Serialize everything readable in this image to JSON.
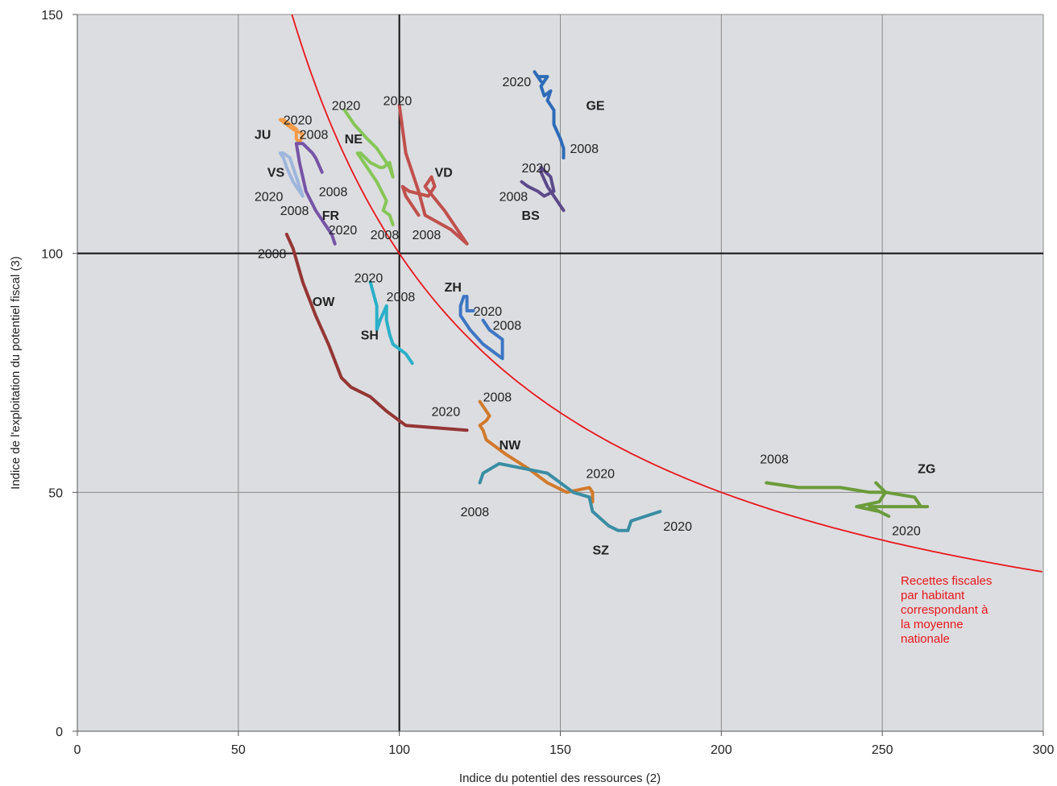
{
  "chart_data": {
    "type": "line",
    "xlabel": "Indice du potentiel des ressources (2)",
    "ylabel": "Indice de l'exploitation du potentiel fiscal (3)",
    "xlim": [
      0,
      300
    ],
    "ylim": [
      0,
      150
    ],
    "xticks": [
      0,
      50,
      100,
      150,
      200,
      250,
      300
    ],
    "yticks": [
      0,
      50,
      100,
      150
    ],
    "grid": true,
    "reference_lines": {
      "x": 100,
      "y": 100
    },
    "reference_curve": {
      "formula": "y = 10000 / x",
      "color": "#e8161b",
      "label_lines": [
        "Recettes fiscales",
        "par habitant",
        "correspondant à",
        "la moyenne",
        "nationale"
      ]
    },
    "series": [
      {
        "name": "GE",
        "color": "#2e6bb8",
        "x": [
          151,
          151,
          150,
          148,
          148,
          146,
          147,
          145,
          144,
          146,
          143,
          144,
          142
        ],
        "y": [
          120,
          122,
          124,
          127,
          130,
          132,
          134,
          133,
          135,
          137,
          137,
          136,
          138
        ]
      },
      {
        "name": "BS",
        "color": "#5b4a8b",
        "x": [
          151,
          149,
          146,
          144,
          144,
          147,
          148,
          145,
          143,
          140,
          138
        ],
        "y": [
          109,
          111,
          114,
          117,
          118,
          116,
          113,
          112,
          113,
          114,
          115
        ]
      },
      {
        "name": "VD",
        "color": "#c0504d",
        "x": [
          106,
          102,
          101,
          103,
          109,
          111,
          110,
          108,
          114,
          121,
          116,
          108,
          106,
          102,
          100
        ],
        "y": [
          108,
          112,
          114,
          113,
          112,
          114,
          116,
          114,
          109,
          102,
          105,
          108,
          113,
          121,
          131
        ]
      },
      {
        "name": "NE",
        "color": "#86c657",
        "x": [
          98,
          97,
          95,
          96,
          93,
          90,
          87,
          88,
          91,
          94,
          95,
          97,
          98,
          97,
          93,
          90,
          86,
          83
        ],
        "y": [
          106,
          108,
          109,
          111,
          115,
          118,
          121,
          121,
          119,
          118,
          118,
          119,
          116,
          118,
          122,
          124,
          127,
          130
        ]
      },
      {
        "name": "JU",
        "color": "#f59a46",
        "x": [
          69,
          70,
          67,
          65,
          63,
          64,
          66,
          68,
          68,
          69
        ],
        "y": [
          123,
          125,
          126,
          127,
          128,
          128,
          127,
          126,
          124,
          123
        ]
      },
      {
        "name": "VS",
        "color": "#9eb6dc",
        "x": [
          70,
          69,
          67,
          65,
          64,
          63,
          64,
          66,
          67,
          68,
          69,
          70
        ],
        "y": [
          112,
          113,
          115,
          118,
          120,
          121,
          121,
          120,
          118,
          116,
          114,
          112
        ]
      },
      {
        "name": "FR",
        "color": "#7654a6",
        "x": [
          80,
          79,
          77,
          74,
          71,
          69,
          68,
          70,
          73,
          74,
          76
        ],
        "y": [
          102,
          104,
          106,
          109,
          113,
          119,
          123,
          123,
          121,
          120,
          117
        ]
      },
      {
        "name": "OW",
        "color": "#943634",
        "x": [
          65,
          67,
          70,
          74,
          78,
          82,
          85,
          91,
          96,
          102,
          121
        ],
        "y": [
          104,
          101,
          94,
          87,
          81,
          74,
          72,
          70,
          67,
          64,
          63
        ]
      },
      {
        "name": "SH",
        "color": "#2ab0c8",
        "x": [
          104,
          102,
          98,
          97,
          96,
          96,
          94,
          93,
          93,
          91
        ],
        "y": [
          77,
          79,
          81,
          83,
          86,
          89,
          86,
          84,
          89,
          94
        ]
      },
      {
        "name": "ZH",
        "color": "#3d76c4",
        "x": [
          126,
          128,
          132,
          132,
          126,
          122,
          119,
          119,
          120,
          121,
          121,
          123
        ],
        "y": [
          86,
          84,
          82,
          78,
          81,
          84,
          87,
          89,
          91,
          91,
          88,
          88
        ]
      },
      {
        "name": "NW",
        "color": "#d17a2c",
        "x": [
          160,
          160,
          159,
          152,
          146,
          140,
          133,
          127,
          126,
          125,
          127,
          128,
          126,
          125
        ],
        "y": [
          48,
          50,
          51,
          50,
          52,
          55,
          58,
          61,
          63,
          64,
          65,
          66,
          68,
          69
        ]
      },
      {
        "name": "SZ",
        "color": "#3a8da3",
        "x": [
          125,
          126,
          131,
          146,
          154,
          159,
          160,
          165,
          168,
          171,
          172,
          172,
          181
        ],
        "y": [
          52,
          54,
          56,
          54,
          50,
          49,
          46,
          43,
          42,
          42,
          44,
          44,
          46
        ]
      },
      {
        "name": "ZG",
        "color": "#6b9b3b",
        "x": [
          214,
          224,
          237,
          246,
          251,
          260,
          262,
          264,
          246,
          252,
          249,
          242,
          249,
          251,
          248
        ],
        "y": [
          52,
          51,
          51,
          50,
          50,
          49,
          47,
          47,
          47,
          45,
          46,
          47,
          48,
          50,
          52
        ]
      }
    ],
    "canton_labels": [
      {
        "text": "GE",
        "x": 158,
        "y": 130
      },
      {
        "text": "BS",
        "x": 138,
        "y": 107
      },
      {
        "text": "VD",
        "x": 111,
        "y": 116
      },
      {
        "text": "NE",
        "x": 83,
        "y": 123
      },
      {
        "text": "JU",
        "x": 55,
        "y": 124
      },
      {
        "text": "VS",
        "x": 59,
        "y": 116
      },
      {
        "text": "FR",
        "x": 76,
        "y": 107
      },
      {
        "text": "OW",
        "x": 73,
        "y": 89
      },
      {
        "text": "SH",
        "x": 88,
        "y": 82
      },
      {
        "text": "ZH",
        "x": 114,
        "y": 92
      },
      {
        "text": "NW",
        "x": 131,
        "y": 59
      },
      {
        "text": "SZ",
        "x": 160,
        "y": 37
      },
      {
        "text": "ZG",
        "x": 261,
        "y": 54
      }
    ],
    "year_labels": [
      {
        "text": "2020",
        "x": 132,
        "y": 135
      },
      {
        "text": "2008",
        "x": 153,
        "y": 121
      },
      {
        "text": "2020",
        "x": 138,
        "y": 117
      },
      {
        "text": "2008",
        "x": 131,
        "y": 111
      },
      {
        "text": "2020",
        "x": 95,
        "y": 131
      },
      {
        "text": "2008",
        "x": 104,
        "y": 103
      },
      {
        "text": "2020",
        "x": 79,
        "y": 130
      },
      {
        "text": "2008",
        "x": 91,
        "y": 103
      },
      {
        "text": "2020",
        "x": 64,
        "y": 127
      },
      {
        "text": "2008",
        "x": 69,
        "y": 124
      },
      {
        "text": "2020",
        "x": 55,
        "y": 111
      },
      {
        "text": "2008",
        "x": 75,
        "y": 112
      },
      {
        "text": "2008",
        "x": 63,
        "y": 108
      },
      {
        "text": "2020",
        "x": 78,
        "y": 104
      },
      {
        "text": "2008",
        "x": 56,
        "y": 99
      },
      {
        "text": "2020",
        "x": 86,
        "y": 94
      },
      {
        "text": "2008",
        "x": 96,
        "y": 90
      },
      {
        "text": "2020",
        "x": 123,
        "y": 87
      },
      {
        "text": "2008",
        "x": 129,
        "y": 84
      },
      {
        "text": "2008",
        "x": 126,
        "y": 69
      },
      {
        "text": "2020",
        "x": 110,
        "y": 66
      },
      {
        "text": "2020",
        "x": 158,
        "y": 53
      },
      {
        "text": "2008",
        "x": 119,
        "y": 45
      },
      {
        "text": "2020",
        "x": 182,
        "y": 42
      },
      {
        "text": "2008",
        "x": 212,
        "y": 56
      },
      {
        "text": "2020",
        "x": 253,
        "y": 41
      }
    ]
  }
}
